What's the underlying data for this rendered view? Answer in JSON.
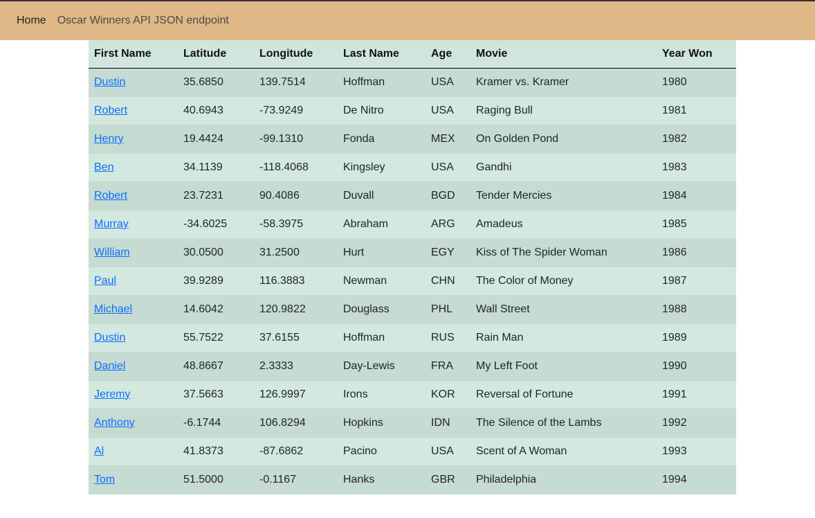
{
  "nav": {
    "home_label": "Home",
    "api_label": "Oscar Winners API JSON endpoint"
  },
  "colors": {
    "navbar": "#deb887",
    "table_row_odd": "#c6dbd2",
    "table_row_even": "#d3e8df",
    "link": "#0d6efd"
  },
  "table": {
    "headers": [
      "First Name",
      "Latitude",
      "Longitude",
      "Last Name",
      "Age",
      "Movie",
      "Year Won"
    ],
    "rows": [
      {
        "first": "Dustin",
        "lat": "35.6850",
        "lon": "139.7514",
        "last": "Hoffman",
        "age": "USA",
        "movie": "Kramer vs. Kramer",
        "year": "1980"
      },
      {
        "first": "Robert",
        "lat": "40.6943",
        "lon": "-73.9249",
        "last": "De Nitro",
        "age": "USA",
        "movie": "Raging Bull",
        "year": "1981"
      },
      {
        "first": "Henry",
        "lat": "19.4424",
        "lon": "-99.1310",
        "last": "Fonda",
        "age": "MEX",
        "movie": "On Golden Pond",
        "year": "1982"
      },
      {
        "first": "Ben",
        "lat": "34.1139",
        "lon": "-118.4068",
        "last": "Kingsley",
        "age": "USA",
        "movie": "Gandhi",
        "year": "1983"
      },
      {
        "first": "Robert",
        "lat": "23.7231",
        "lon": "90.4086",
        "last": "Duvall",
        "age": "BGD",
        "movie": "Tender Mercies",
        "year": "1984"
      },
      {
        "first": "Murray",
        "lat": "-34.6025",
        "lon": "-58.3975",
        "last": "Abraham",
        "age": "ARG",
        "movie": "Amadeus",
        "year": "1985"
      },
      {
        "first": "William",
        "lat": "30.0500",
        "lon": "31.2500",
        "last": "Hurt",
        "age": "EGY",
        "movie": "Kiss of The Spider Woman",
        "year": "1986"
      },
      {
        "first": "Paul",
        "lat": "39.9289",
        "lon": "116.3883",
        "last": "Newman",
        "age": "CHN",
        "movie": "The Color of Money",
        "year": "1987"
      },
      {
        "first": "Michael",
        "lat": "14.6042",
        "lon": "120.9822",
        "last": "Douglass",
        "age": "PHL",
        "movie": "Wall Street",
        "year": "1988"
      },
      {
        "first": "Dustin",
        "lat": "55.7522",
        "lon": "37.6155",
        "last": "Hoffman",
        "age": "RUS",
        "movie": "Rain Man",
        "year": "1989"
      },
      {
        "first": "Daniel",
        "lat": "48.8667",
        "lon": "2.3333",
        "last": "Day-Lewis",
        "age": "FRA",
        "movie": "My Left Foot",
        "year": "1990"
      },
      {
        "first": "Jeremy",
        "lat": "37.5663",
        "lon": "126.9997",
        "last": "Irons",
        "age": "KOR",
        "movie": "Reversal of Fortune",
        "year": "1991"
      },
      {
        "first": "Anthony",
        "lat": "-6.1744",
        "lon": "106.8294",
        "last": "Hopkins",
        "age": "IDN",
        "movie": "The Silence of the Lambs",
        "year": "1992"
      },
      {
        "first": "Al",
        "lat": "41.8373",
        "lon": "-87.6862",
        "last": "Pacino",
        "age": "USA",
        "movie": "Scent of A Woman",
        "year": "1993"
      },
      {
        "first": "Tom",
        "lat": "51.5000",
        "lon": "-0.1167",
        "last": "Hanks",
        "age": "GBR",
        "movie": "Philadelphia",
        "year": "1994"
      }
    ]
  }
}
